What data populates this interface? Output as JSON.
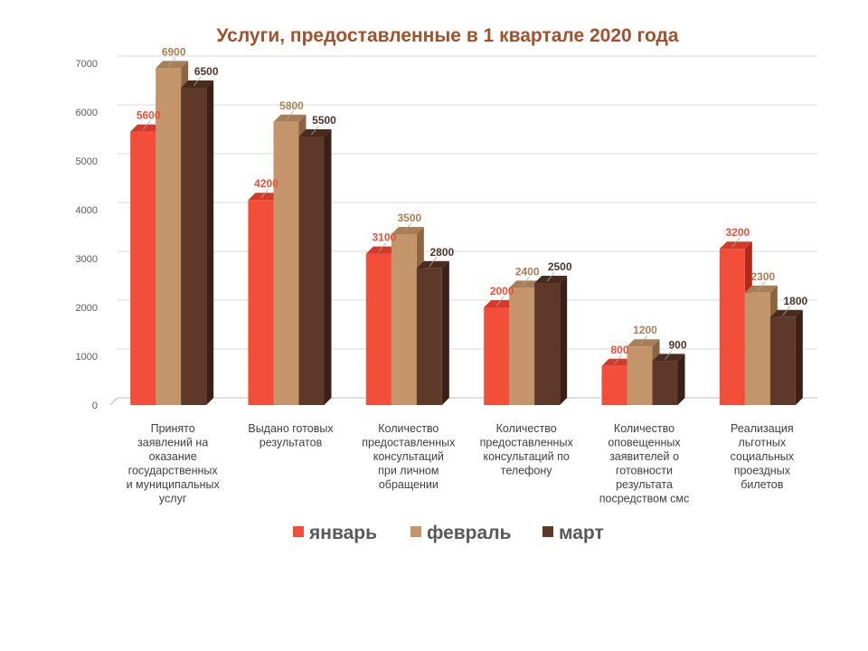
{
  "chart_data": {
    "type": "bar",
    "title": "Услуги, предоставленные в 1 квартале 2020 года",
    "categories": [
      [
        "Принято",
        "заявлений на",
        "оказание",
        "государственных",
        "и муниципальных",
        "услуг"
      ],
      [
        "Выдано готовых",
        "результатов"
      ],
      [
        "Количество",
        "предоставленных",
        "консультаций",
        "при личном",
        "обращении"
      ],
      [
        "Количество",
        "предоставленных",
        "консультаций  по",
        "телефону"
      ],
      [
        "Количество",
        "оповещенных",
        "заявителей о",
        "готовности",
        "результата",
        "посредством смс"
      ],
      [
        "Реализация",
        "льготных",
        "социальных",
        "проездных",
        "билетов"
      ]
    ],
    "series": [
      {
        "name": "январь",
        "values": [
          5600,
          4200,
          3100,
          2000,
          800,
          3200
        ]
      },
      {
        "name": "февраль",
        "values": [
          6900,
          5800,
          3500,
          2400,
          1200,
          2300
        ]
      },
      {
        "name": "март",
        "values": [
          6500,
          5500,
          2800,
          2500,
          900,
          1800
        ]
      }
    ],
    "ylim": [
      0,
      7000
    ],
    "yticks": [
      0,
      1000,
      2000,
      3000,
      4000,
      5000,
      6000,
      7000
    ],
    "grid": true,
    "legend_position": "bottom",
    "xlabel": "",
    "ylabel": ""
  },
  "colors": {
    "title": "#A0522D",
    "series_front": [
      "#F24E39",
      "#C4956A",
      "#5E3828"
    ],
    "series_side": [
      "#B02A1C",
      "#8C6440",
      "#3A2015"
    ],
    "series_top": [
      "#D43A28",
      "#A87E56",
      "#4A2C1E"
    ],
    "label_colors": [
      "#E8503A",
      "#A97E55",
      "#4E342E"
    ],
    "grid": "#D9D9D9",
    "axis": "#BFBFBF"
  }
}
